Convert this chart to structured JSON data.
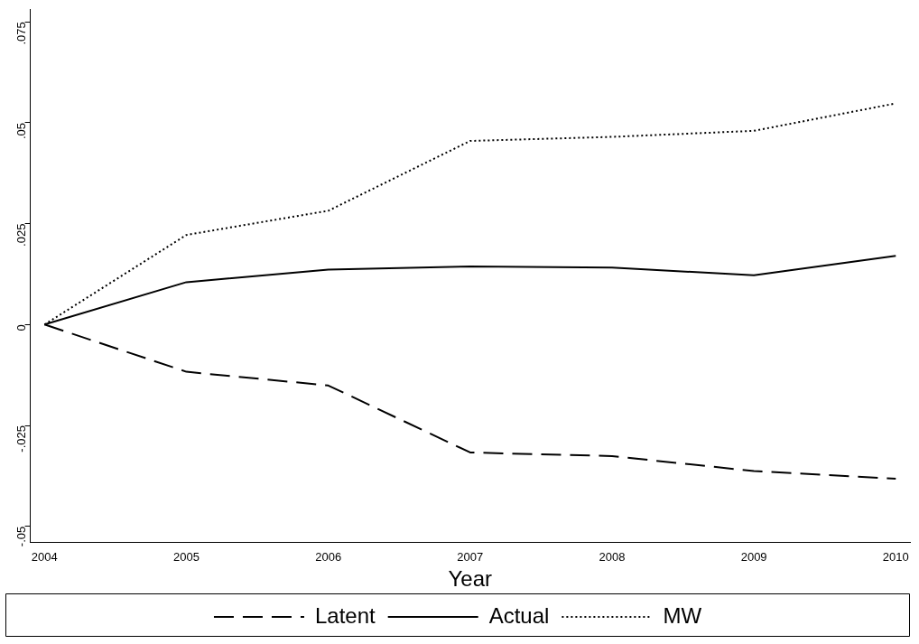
{
  "chart_data": {
    "type": "line",
    "xlabel": "Year",
    "x": [
      2004,
      2005,
      2006,
      2007,
      2008,
      2009,
      2010
    ],
    "xlim": [
      2003.9,
      2010.1
    ],
    "xticks": [
      2004,
      2005,
      2006,
      2007,
      2008,
      2009,
      2010
    ],
    "ylim": [
      -0.054,
      0.078
    ],
    "yticks": [
      {
        "value": -0.05,
        "label": "-.05"
      },
      {
        "value": -0.025,
        "label": "-.025"
      },
      0,
      {
        "value": 0.025,
        "label": ".025"
      },
      {
        "value": 0.05,
        "label": ".05"
      },
      {
        "value": 0.075,
        "label": ".075"
      }
    ],
    "grid": false,
    "legend": "bottom",
    "marker": "none",
    "series": [
      {
        "name": "Latent",
        "color": "#000000",
        "line_style": "dashed",
        "values": [
          0,
          -0.0117,
          -0.0151,
          -0.0317,
          -0.0326,
          -0.0363,
          -0.0382
        ]
      },
      {
        "name": "Actual",
        "color": "#000000",
        "line_style": "solid",
        "values": [
          0,
          0.0105,
          0.0136,
          0.0144,
          0.0141,
          0.0122,
          0.017
        ]
      },
      {
        "name": "MW",
        "color": "#000000",
        "line_style": "dotted",
        "values": [
          0,
          0.0222,
          0.0282,
          0.0455,
          0.0465,
          0.048,
          0.0548
        ]
      }
    ]
  }
}
